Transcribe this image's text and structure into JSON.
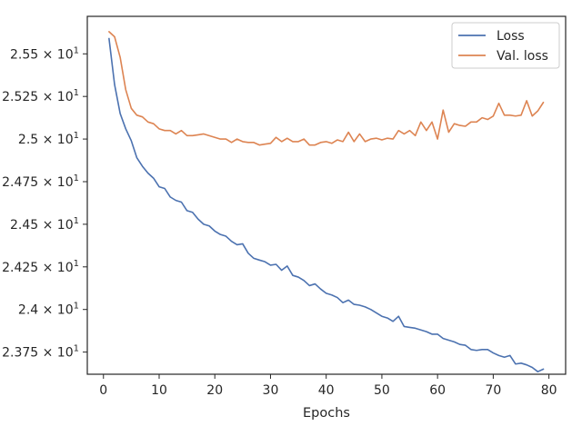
{
  "chart_data": {
    "type": "line",
    "title": "",
    "xlabel": "Epochs",
    "ylabel": "",
    "xlim": [
      -2.9,
      83
    ],
    "ylim": [
      23.62,
      25.72
    ],
    "grid": false,
    "legend_position": "top-right",
    "x_ticks": [
      {
        "value": 0,
        "label": "0"
      },
      {
        "value": 10,
        "label": "10"
      },
      {
        "value": 20,
        "label": "20"
      },
      {
        "value": 30,
        "label": "30"
      },
      {
        "value": 40,
        "label": "40"
      },
      {
        "value": 50,
        "label": "50"
      },
      {
        "value": 60,
        "label": "60"
      },
      {
        "value": 70,
        "label": "70"
      },
      {
        "value": 80,
        "label": "80"
      }
    ],
    "y_ticks": [
      {
        "value": 23.75,
        "mantissa": "2.375",
        "base": "10",
        "exp": "1"
      },
      {
        "value": 24.0,
        "mantissa": "2.4",
        "base": "10",
        "exp": "1"
      },
      {
        "value": 24.25,
        "mantissa": "2.425",
        "base": "10",
        "exp": "1"
      },
      {
        "value": 24.5,
        "mantissa": "2.45",
        "base": "10",
        "exp": "1"
      },
      {
        "value": 24.75,
        "mantissa": "2.475",
        "base": "10",
        "exp": "1"
      },
      {
        "value": 25.0,
        "mantissa": "2.5",
        "base": "10",
        "exp": "1"
      },
      {
        "value": 25.25,
        "mantissa": "2.525",
        "base": "10",
        "exp": "1"
      },
      {
        "value": 25.5,
        "mantissa": "2.55",
        "base": "10",
        "exp": "1"
      }
    ],
    "series": [
      {
        "name": "Loss",
        "color": "#4c72b0",
        "x": [
          1,
          2,
          3,
          4,
          5,
          6,
          7,
          8,
          9,
          10,
          11,
          12,
          13,
          14,
          15,
          16,
          17,
          18,
          19,
          20,
          21,
          22,
          23,
          24,
          25,
          26,
          27,
          28,
          29,
          30,
          31,
          32,
          33,
          34,
          35,
          36,
          37,
          38,
          39,
          40,
          41,
          42,
          43,
          44,
          45,
          46,
          47,
          48,
          49,
          50,
          51,
          52,
          53,
          54,
          55,
          56,
          57,
          58,
          59,
          60,
          61,
          62,
          63,
          64,
          65,
          66,
          67,
          68,
          69,
          70,
          71,
          72,
          73,
          74,
          75,
          76,
          77,
          78,
          79
        ],
        "values": [
          25.59,
          25.32,
          25.15,
          25.06,
          24.99,
          24.89,
          24.84,
          24.8,
          24.77,
          24.72,
          24.71,
          24.66,
          24.64,
          24.63,
          24.58,
          24.57,
          24.53,
          24.5,
          24.49,
          24.46,
          24.44,
          24.43,
          24.4,
          24.38,
          24.385,
          24.33,
          24.3,
          24.29,
          24.28,
          24.26,
          24.265,
          24.23,
          24.255,
          24.2,
          24.19,
          24.17,
          24.14,
          24.15,
          24.12,
          24.095,
          24.085,
          24.07,
          24.04,
          24.055,
          24.03,
          24.025,
          24.015,
          24.0,
          23.98,
          23.96,
          23.95,
          23.93,
          23.96,
          23.9,
          23.895,
          23.89,
          23.88,
          23.87,
          23.855,
          23.855,
          23.83,
          23.82,
          23.81,
          23.795,
          23.79,
          23.765,
          23.76,
          23.765,
          23.765,
          23.745,
          23.73,
          23.72,
          23.73,
          23.68,
          23.685,
          23.675,
          23.66,
          23.635,
          23.65
        ]
      },
      {
        "name": "Val. loss",
        "color": "#dd8452",
        "x": [
          1,
          2,
          3,
          4,
          5,
          6,
          7,
          8,
          9,
          10,
          11,
          12,
          13,
          14,
          15,
          16,
          17,
          18,
          19,
          20,
          21,
          22,
          23,
          24,
          25,
          26,
          27,
          28,
          29,
          30,
          31,
          32,
          33,
          34,
          35,
          36,
          37,
          38,
          39,
          40,
          41,
          42,
          43,
          44,
          45,
          46,
          47,
          48,
          49,
          50,
          51,
          52,
          53,
          54,
          55,
          56,
          57,
          58,
          59,
          60,
          61,
          62,
          63,
          64,
          65,
          66,
          67,
          68,
          69,
          70,
          71,
          72,
          73,
          74,
          75,
          76,
          77,
          78,
          79
        ],
        "values": [
          25.63,
          25.6,
          25.48,
          25.29,
          25.18,
          25.14,
          25.13,
          25.1,
          25.09,
          25.06,
          25.05,
          25.05,
          25.03,
          25.05,
          25.02,
          25.02,
          25.025,
          25.03,
          25.02,
          25.01,
          25.0,
          25.0,
          24.98,
          25.0,
          24.985,
          24.98,
          24.98,
          24.965,
          24.97,
          24.975,
          25.01,
          24.985,
          25.005,
          24.985,
          24.985,
          25.0,
          24.965,
          24.965,
          24.98,
          24.985,
          24.975,
          24.995,
          24.985,
          25.04,
          24.985,
          25.03,
          24.985,
          25.0,
          25.005,
          24.995,
          25.005,
          25.0,
          25.05,
          25.03,
          25.05,
          25.02,
          25.1,
          25.05,
          25.1,
          25.0,
          25.17,
          25.04,
          25.09,
          25.08,
          25.075,
          25.1,
          25.1,
          25.125,
          25.115,
          25.135,
          25.21,
          25.14,
          25.14,
          25.135,
          25.14,
          25.225,
          25.135,
          25.165,
          25.215
        ]
      }
    ]
  }
}
